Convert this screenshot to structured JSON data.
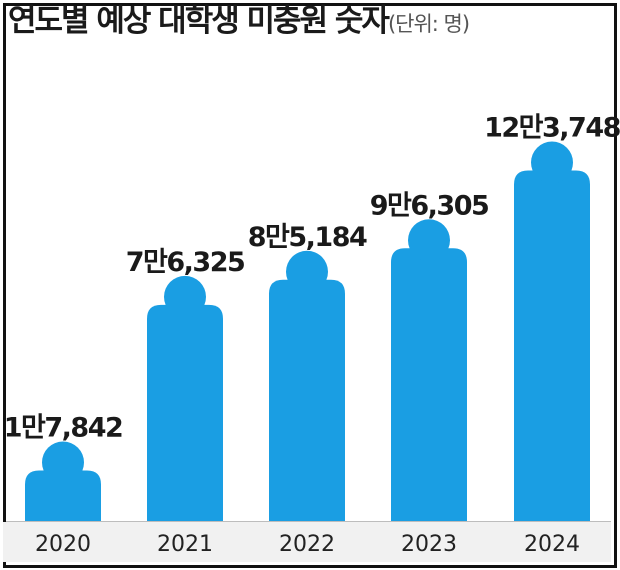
{
  "chart_data": {
    "type": "bar",
    "title": "연도별 예상 대학생 미충원 숫자",
    "subtitle": "(단위: 명)",
    "xlabel": "",
    "ylabel": "",
    "categories": [
      "2020",
      "2021",
      "2022",
      "2023",
      "2024"
    ],
    "values": [
      17842,
      76325,
      85184,
      96305,
      123748
    ],
    "data_labels": [
      "1만7,842",
      "7만6,325",
      "8만5,184",
      "9만6,305",
      "12만3,748"
    ],
    "ylim": [
      0,
      125000
    ],
    "grid": false,
    "legend": "none",
    "colors": {
      "bar": "#1a9ee3",
      "text": "#1a1a1a",
      "axis_band": "#f1f1f1"
    }
  }
}
